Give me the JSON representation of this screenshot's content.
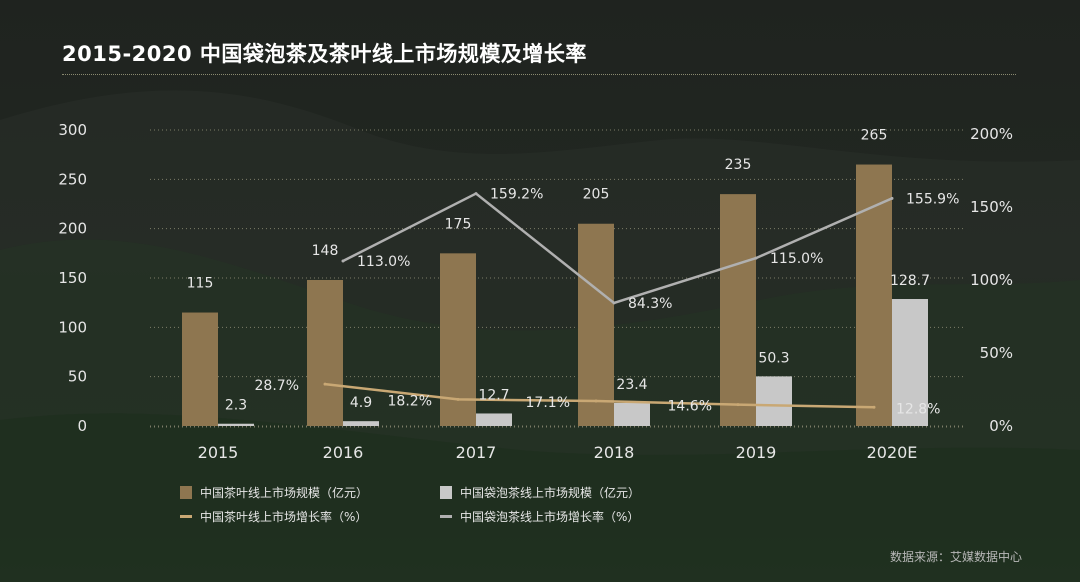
{
  "header": {
    "title": "2015-2020  中国袋泡茶及茶叶线上市场规模及增长率"
  },
  "source": "数据来源：艾媒数据中心",
  "colors": {
    "tea_bar": "#8e7650",
    "bagtea_bar": "#c8c8c8",
    "tea_line": "#c9a874",
    "bagtea_line": "#b0b0b0"
  },
  "legend": [
    {
      "label": "中国茶叶线上市场规模（亿元）",
      "kind": "bar",
      "color": "#8e7650"
    },
    {
      "label": "中国袋泡茶线上市场规模（亿元）",
      "kind": "bar",
      "color": "#c8c8c8"
    },
    {
      "label": "中国茶叶线上市场增长率（%）",
      "kind": "line",
      "color": "#c9a874"
    },
    {
      "label": "中国袋泡茶线上市场增长率（%）",
      "kind": "line",
      "color": "#b0b0b0"
    }
  ],
  "chart_data": {
    "type": "bar",
    "categories": [
      "2015",
      "2016",
      "2017",
      "2018",
      "2019",
      "2020E"
    ],
    "y_left": {
      "ylim": [
        0,
        300
      ],
      "ticks": [
        "0",
        "50",
        "100",
        "150",
        "200",
        "250",
        "300"
      ]
    },
    "y_right": {
      "ylim": [
        0,
        200
      ],
      "ticks": [
        "0%",
        "50%",
        "100%",
        "150%",
        "200%"
      ]
    },
    "series": [
      {
        "name": "中国茶叶线上市场规模（亿元）",
        "kind": "bar",
        "axis": "left",
        "values": [
          115,
          148,
          175,
          205,
          235,
          265
        ],
        "labels": [
          "115",
          "148",
          "175",
          "205",
          "235",
          "265"
        ]
      },
      {
        "name": "中国袋泡茶线上市场规模（亿元）",
        "kind": "bar",
        "axis": "left",
        "values": [
          2.3,
          4.9,
          12.7,
          23.4,
          50.3,
          128.7
        ],
        "labels": [
          "2.3",
          "4.9",
          "12.7",
          "23.4",
          "50.3",
          "128.7"
        ]
      },
      {
        "name": "中国茶叶线上市场增长率（%）",
        "kind": "line",
        "axis": "right",
        "x": [
          "2016",
          "2017",
          "2018",
          "2019",
          "2020E"
        ],
        "values": [
          28.7,
          18.2,
          17.1,
          14.6,
          12.8
        ],
        "labels": [
          "28.7%",
          "18.2%",
          "17.1%",
          "14.6%",
          "12.8%"
        ]
      },
      {
        "name": "中国袋泡茶线上市场增长率（%）",
        "kind": "line",
        "axis": "right",
        "x": [
          "2016",
          "2017",
          "2018",
          "2019",
          "2020E"
        ],
        "values": [
          113.0,
          159.2,
          84.3,
          115.0,
          155.9
        ],
        "labels": [
          "113.0%",
          "159.2%",
          "84.3%",
          "115.0%",
          "155.9%"
        ]
      }
    ]
  }
}
